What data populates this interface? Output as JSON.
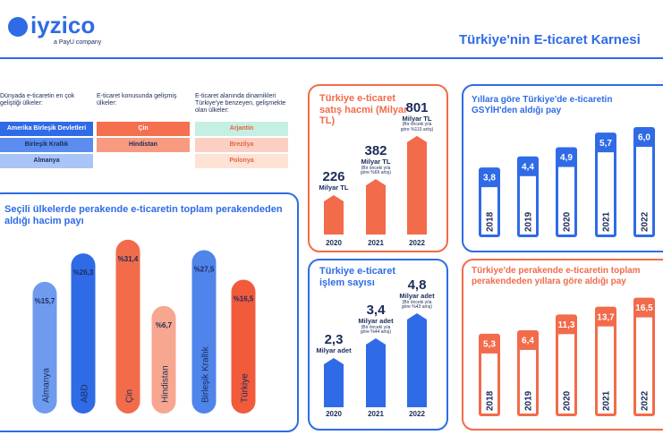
{
  "header": {
    "logo": "iyzico",
    "logo_tagline": "a PayU company",
    "title": "Türkiye'nin E-ticaret Karnesi"
  },
  "country_lists": [
    {
      "heading": "Dünyada e-ticaretin en çok geliştiği ülkeler:",
      "items": [
        "Amerika Birleşik Devletleri",
        "Birleşik Krallık",
        "Almanya"
      ],
      "colors": [
        "#2f6be6",
        "#5b8df0",
        "#a9c4f7"
      ]
    },
    {
      "heading": "E-ticaret konusunda gelişmiş ülkeler:",
      "items": [
        "Çin",
        "Hindistan"
      ],
      "colors": [
        "#f4704f",
        "#f79a80"
      ]
    },
    {
      "heading": "E-ticaret alanında dinamikleri Türkiye'ye benzeyen, gelişmekte olan ülkeler:",
      "items": [
        "Arjantin",
        "Brezilya",
        "Polonya"
      ],
      "colors": [
        "#c4efe3",
        "#fbd0c2",
        "#fde2d6"
      ]
    }
  ],
  "chart_data": [
    {
      "type": "bar",
      "title": "Seçili ülkelerde perakende e-ticaretin toplam perakendeden aldığı hacim payı",
      "categories": [
        "Almanya",
        "ABD",
        "Çin",
        "Hindistan",
        "Birleşik Krallık",
        "Türkiye"
      ],
      "values": [
        15.7,
        26.3,
        31.4,
        6.7,
        27.5,
        16.5
      ],
      "value_labels": [
        "%15,7",
        "%26,3",
        "%31,4",
        "%6,7",
        "%27,5",
        "%16,5"
      ],
      "colors": [
        "#6f9bef",
        "#2f6be6",
        "#f26b4a",
        "#f7a78f",
        "#4f84ea",
        "#f25a3c"
      ]
    },
    {
      "type": "bar",
      "title": "Türkiye e-ticaret satış hacmi (Milyar TL)",
      "categories": [
        "2020",
        "2021",
        "2022"
      ],
      "values": [
        226,
        382,
        801
      ],
      "units": [
        "Milyar TL",
        "Milyar TL",
        "Milyar TL"
      ],
      "notes": [
        null,
        "(Bir önceki yıla göre %69 artış)",
        "(Bir önceki yıla göre %110 artış)"
      ],
      "color": "#f26b4a"
    },
    {
      "type": "bar",
      "title": "Türkiye e-ticaret işlem sayısı",
      "categories": [
        "2020",
        "2021",
        "2022"
      ],
      "values": [
        2.3,
        3.4,
        4.8
      ],
      "value_labels": [
        "2,3",
        "3,4",
        "4,8"
      ],
      "units": [
        "Milyar adet",
        "Milyar adet",
        "Milyar adet"
      ],
      "notes": [
        null,
        "(Bir önceki yıla göre %44 artış)",
        "(Bir önceki yıla göre %43 artış)"
      ],
      "color": "#2f6be6"
    },
    {
      "type": "bar",
      "title": "Yıllara göre Türkiye'de e-ticaretin GSYİH'den aldığı pay",
      "categories": [
        "2018",
        "2019",
        "2020",
        "2021",
        "2022"
      ],
      "values": [
        3.8,
        4.4,
        4.9,
        5.7,
        6.0
      ],
      "value_labels": [
        "3,8",
        "4,4",
        "4,9",
        "5,7",
        "6,0"
      ],
      "color": "#2f6be6"
    },
    {
      "type": "bar",
      "title": "Türkiye'de perakende e-ticaretin toplam perakendeden yıllara göre aldığı pay",
      "categories": [
        "2018",
        "2019",
        "2020",
        "2021",
        "2022"
      ],
      "values": [
        5.3,
        6.4,
        11.3,
        13.7,
        16.5
      ],
      "value_labels": [
        "5,3",
        "6,4",
        "11,3",
        "13,7",
        "16,5"
      ],
      "color": "#f26b4a"
    }
  ]
}
